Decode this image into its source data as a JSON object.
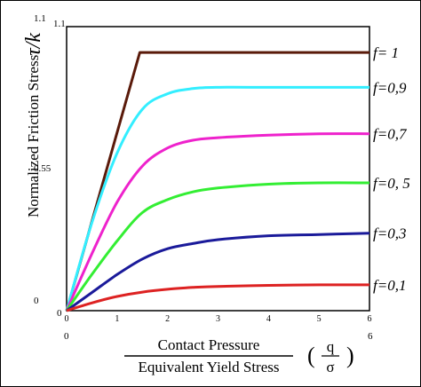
{
  "chart_data": {
    "type": "line",
    "ylabel": "Normalized Friction Stress",
    "ylabel_symbol": "τ/k",
    "xlabel_numerator": "Contact Pressure",
    "xlabel_denominator": "Equivalent Yield Stress",
    "xlabel_ratio_num": "q",
    "xlabel_ratio_den": "σ",
    "xlim": [
      0,
      6
    ],
    "ylim": [
      0,
      1.1
    ],
    "x_ticks": [
      "0",
      "1",
      "2",
      "3",
      "4",
      "5",
      "6"
    ],
    "x_range_labels": [
      "0",
      "6"
    ],
    "y_range_labels": [
      "1.1",
      "0.55",
      "0"
    ],
    "y_axis_ticks": [
      "1.1",
      "0"
    ],
    "series": [
      {
        "name": "f= 1",
        "color": "#5a1a0a",
        "x": [
          0,
          1.45,
          6
        ],
        "y": [
          0,
          1.0,
          1.0
        ]
      },
      {
        "name": "f=0,9",
        "color": "#33eeff",
        "x": [
          0,
          0.5,
          1.0,
          1.5,
          2.0,
          2.5,
          3.0,
          4.0,
          5.0,
          6.0
        ],
        "y": [
          0,
          0.34,
          0.61,
          0.78,
          0.84,
          0.86,
          0.865,
          0.865,
          0.865,
          0.865
        ]
      },
      {
        "name": "f=0,7",
        "color": "#ee22cc",
        "x": [
          0,
          0.5,
          1.0,
          1.5,
          2.0,
          2.5,
          3.0,
          4.0,
          5.0,
          6.0
        ],
        "y": [
          0,
          0.22,
          0.42,
          0.56,
          0.63,
          0.66,
          0.67,
          0.68,
          0.685,
          0.685
        ]
      },
      {
        "name": "f=0, 5",
        "color": "#33ee33",
        "x": [
          0,
          0.5,
          1.0,
          1.5,
          2.0,
          2.5,
          3.0,
          4.0,
          5.0,
          6.0
        ],
        "y": [
          0,
          0.14,
          0.27,
          0.38,
          0.43,
          0.46,
          0.475,
          0.49,
          0.495,
          0.495
        ]
      },
      {
        "name": "f=0,3",
        "color": "#1a1a9a",
        "x": [
          0,
          0.5,
          1.0,
          1.5,
          2.0,
          2.5,
          3.0,
          4.0,
          5.0,
          6.0
        ],
        "y": [
          0,
          0.07,
          0.14,
          0.2,
          0.24,
          0.26,
          0.275,
          0.29,
          0.295,
          0.3
        ]
      },
      {
        "name": "f=0,1",
        "color": "#dd2222",
        "x": [
          0,
          0.5,
          1.0,
          1.5,
          2.0,
          2.5,
          3.0,
          4.0,
          5.0,
          6.0
        ],
        "y": [
          0,
          0.03,
          0.055,
          0.072,
          0.083,
          0.09,
          0.094,
          0.098,
          0.1,
          0.1
        ]
      }
    ]
  }
}
